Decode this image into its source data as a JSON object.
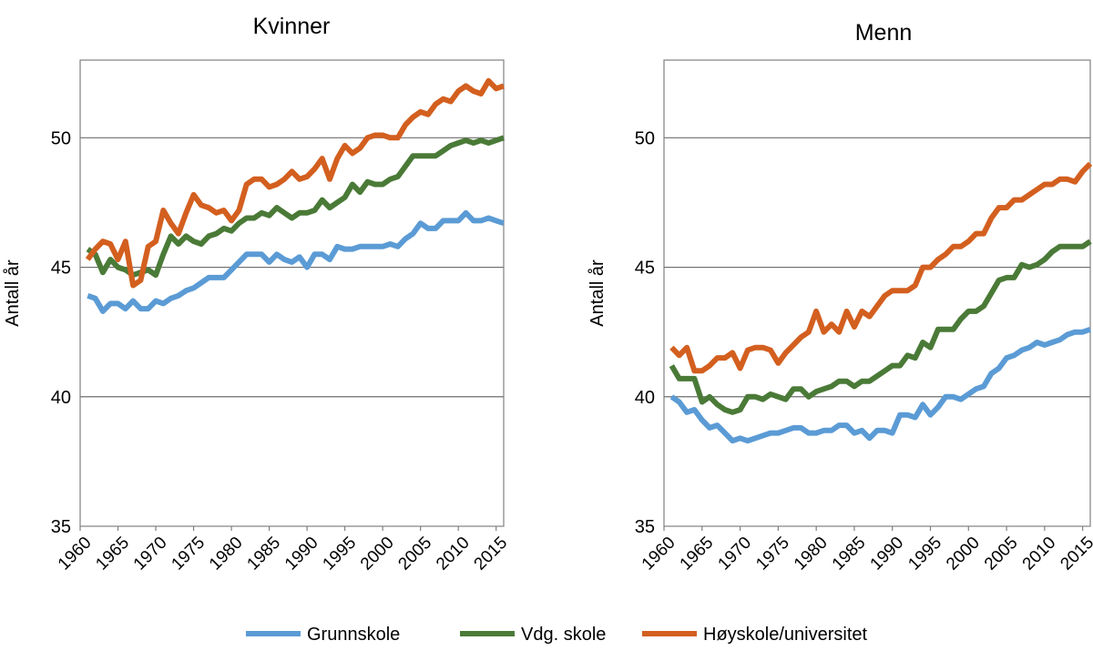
{
  "chart_data": [
    {
      "type": "line",
      "title": "Kvinner",
      "xlabel": "",
      "ylabel": "Antall år",
      "xlim": [
        1960,
        2016
      ],
      "ylim": [
        35,
        53
      ],
      "yticks": [
        35,
        40,
        45,
        50
      ],
      "xticks": [
        1960,
        1965,
        1970,
        1975,
        1980,
        1985,
        1990,
        1995,
        2000,
        2005,
        2010,
        2015
      ],
      "grid": "horizontal",
      "x": [
        1961,
        1962,
        1963,
        1964,
        1965,
        1966,
        1967,
        1968,
        1969,
        1970,
        1971,
        1972,
        1973,
        1974,
        1975,
        1976,
        1977,
        1978,
        1979,
        1980,
        1981,
        1982,
        1983,
        1984,
        1985,
        1986,
        1987,
        1988,
        1989,
        1990,
        1991,
        1992,
        1993,
        1994,
        1995,
        1996,
        1997,
        1998,
        1999,
        2000,
        2001,
        2002,
        2003,
        2004,
        2005,
        2006,
        2007,
        2008,
        2009,
        2010,
        2011,
        2012,
        2013,
        2014,
        2015,
        2016
      ],
      "series": [
        {
          "name": "Grunnskole",
          "values": [
            43.9,
            43.8,
            43.3,
            43.6,
            43.6,
            43.4,
            43.7,
            43.4,
            43.4,
            43.7,
            43.6,
            43.8,
            43.9,
            44.1,
            44.2,
            44.4,
            44.6,
            44.6,
            44.6,
            44.9,
            45.2,
            45.5,
            45.5,
            45.5,
            45.2,
            45.5,
            45.3,
            45.2,
            45.4,
            45.0,
            45.5,
            45.5,
            45.3,
            45.8,
            45.7,
            45.7,
            45.8,
            45.8,
            45.8,
            45.8,
            45.9,
            45.8,
            46.1,
            46.3,
            46.7,
            46.5,
            46.5,
            46.8,
            46.8,
            46.8,
            47.1,
            46.8,
            46.8,
            46.9,
            46.8,
            46.7
          ]
        },
        {
          "name": "Vdg. skole",
          "values": [
            45.7,
            45.5,
            44.8,
            45.3,
            45.0,
            44.9,
            44.7,
            44.8,
            44.9,
            44.7,
            45.5,
            46.2,
            45.9,
            46.2,
            46.0,
            45.9,
            46.2,
            46.3,
            46.5,
            46.4,
            46.7,
            46.9,
            46.9,
            47.1,
            47.0,
            47.3,
            47.1,
            46.9,
            47.1,
            47.1,
            47.2,
            47.6,
            47.3,
            47.5,
            47.7,
            48.2,
            47.9,
            48.3,
            48.2,
            48.2,
            48.4,
            48.5,
            48.9,
            49.3,
            49.3,
            49.3,
            49.3,
            49.5,
            49.7,
            49.8,
            49.9,
            49.8,
            49.9,
            49.8,
            49.9,
            50.0
          ]
        },
        {
          "name": "Høyskole/universitet",
          "values": [
            45.3,
            45.7,
            46.0,
            45.9,
            45.3,
            46.0,
            44.3,
            44.5,
            45.8,
            46.0,
            47.2,
            46.7,
            46.3,
            47.1,
            47.8,
            47.4,
            47.3,
            47.1,
            47.2,
            46.8,
            47.2,
            48.2,
            48.4,
            48.4,
            48.1,
            48.2,
            48.4,
            48.7,
            48.4,
            48.5,
            48.8,
            49.2,
            48.4,
            49.2,
            49.7,
            49.4,
            49.6,
            50.0,
            50.1,
            50.1,
            50.0,
            50.0,
            50.5,
            50.8,
            51.0,
            50.9,
            51.3,
            51.5,
            51.4,
            51.8,
            52.0,
            51.8,
            51.7,
            52.2,
            51.9,
            52.0
          ]
        }
      ]
    },
    {
      "type": "line",
      "title": "Menn",
      "xlabel": "",
      "ylabel": "Antall år",
      "xlim": [
        1960,
        2016
      ],
      "ylim": [
        35,
        53
      ],
      "yticks": [
        35,
        40,
        45,
        50
      ],
      "xticks": [
        1960,
        1965,
        1970,
        1975,
        1980,
        1985,
        1990,
        1995,
        2000,
        2005,
        2010,
        2015
      ],
      "grid": "horizontal",
      "x": [
        1961,
        1962,
        1963,
        1964,
        1965,
        1966,
        1967,
        1968,
        1969,
        1970,
        1971,
        1972,
        1973,
        1974,
        1975,
        1976,
        1977,
        1978,
        1979,
        1980,
        1981,
        1982,
        1983,
        1984,
        1985,
        1986,
        1987,
        1988,
        1989,
        1990,
        1991,
        1992,
        1993,
        1994,
        1995,
        1996,
        1997,
        1998,
        1999,
        2000,
        2001,
        2002,
        2003,
        2004,
        2005,
        2006,
        2007,
        2008,
        2009,
        2010,
        2011,
        2012,
        2013,
        2014,
        2015,
        2016
      ],
      "series": [
        {
          "name": "Grunnskole",
          "values": [
            40.0,
            39.8,
            39.4,
            39.5,
            39.1,
            38.8,
            38.9,
            38.6,
            38.3,
            38.4,
            38.3,
            38.4,
            38.5,
            38.6,
            38.6,
            38.7,
            38.8,
            38.8,
            38.6,
            38.6,
            38.7,
            38.7,
            38.9,
            38.9,
            38.6,
            38.7,
            38.4,
            38.7,
            38.7,
            38.6,
            39.3,
            39.3,
            39.2,
            39.7,
            39.3,
            39.6,
            40.0,
            40.0,
            39.9,
            40.1,
            40.3,
            40.4,
            40.9,
            41.1,
            41.5,
            41.6,
            41.8,
            41.9,
            42.1,
            42.0,
            42.1,
            42.2,
            42.4,
            42.5,
            42.5,
            42.6
          ]
        },
        {
          "name": "Vdg. skole",
          "values": [
            41.2,
            40.7,
            40.7,
            40.7,
            39.8,
            40.0,
            39.7,
            39.5,
            39.4,
            39.5,
            40.0,
            40.0,
            39.9,
            40.1,
            40.0,
            39.9,
            40.3,
            40.3,
            40.0,
            40.2,
            40.3,
            40.4,
            40.6,
            40.6,
            40.4,
            40.6,
            40.6,
            40.8,
            41.0,
            41.2,
            41.2,
            41.6,
            41.5,
            42.1,
            41.9,
            42.6,
            42.6,
            42.6,
            43.0,
            43.3,
            43.3,
            43.5,
            44.0,
            44.5,
            44.6,
            44.6,
            45.1,
            45.0,
            45.1,
            45.3,
            45.6,
            45.8,
            45.8,
            45.8,
            45.8,
            46.0
          ]
        },
        {
          "name": "Høyskole/universitet",
          "values": [
            41.9,
            41.6,
            41.9,
            41.0,
            41.0,
            41.2,
            41.5,
            41.5,
            41.7,
            41.1,
            41.8,
            41.9,
            41.9,
            41.8,
            41.3,
            41.7,
            42.0,
            42.3,
            42.5,
            43.3,
            42.5,
            42.8,
            42.5,
            43.3,
            42.7,
            43.3,
            43.1,
            43.5,
            43.9,
            44.1,
            44.1,
            44.1,
            44.3,
            45.0,
            45.0,
            45.3,
            45.5,
            45.8,
            45.8,
            46.0,
            46.3,
            46.3,
            46.9,
            47.3,
            47.3,
            47.6,
            47.6,
            47.8,
            48.0,
            48.2,
            48.2,
            48.4,
            48.4,
            48.3,
            48.7,
            49.0
          ]
        }
      ]
    }
  ],
  "legend": {
    "placement": "bottom",
    "colors": [
      "#5B9BD5",
      "#4A7A37",
      "#D35F1F"
    ]
  }
}
